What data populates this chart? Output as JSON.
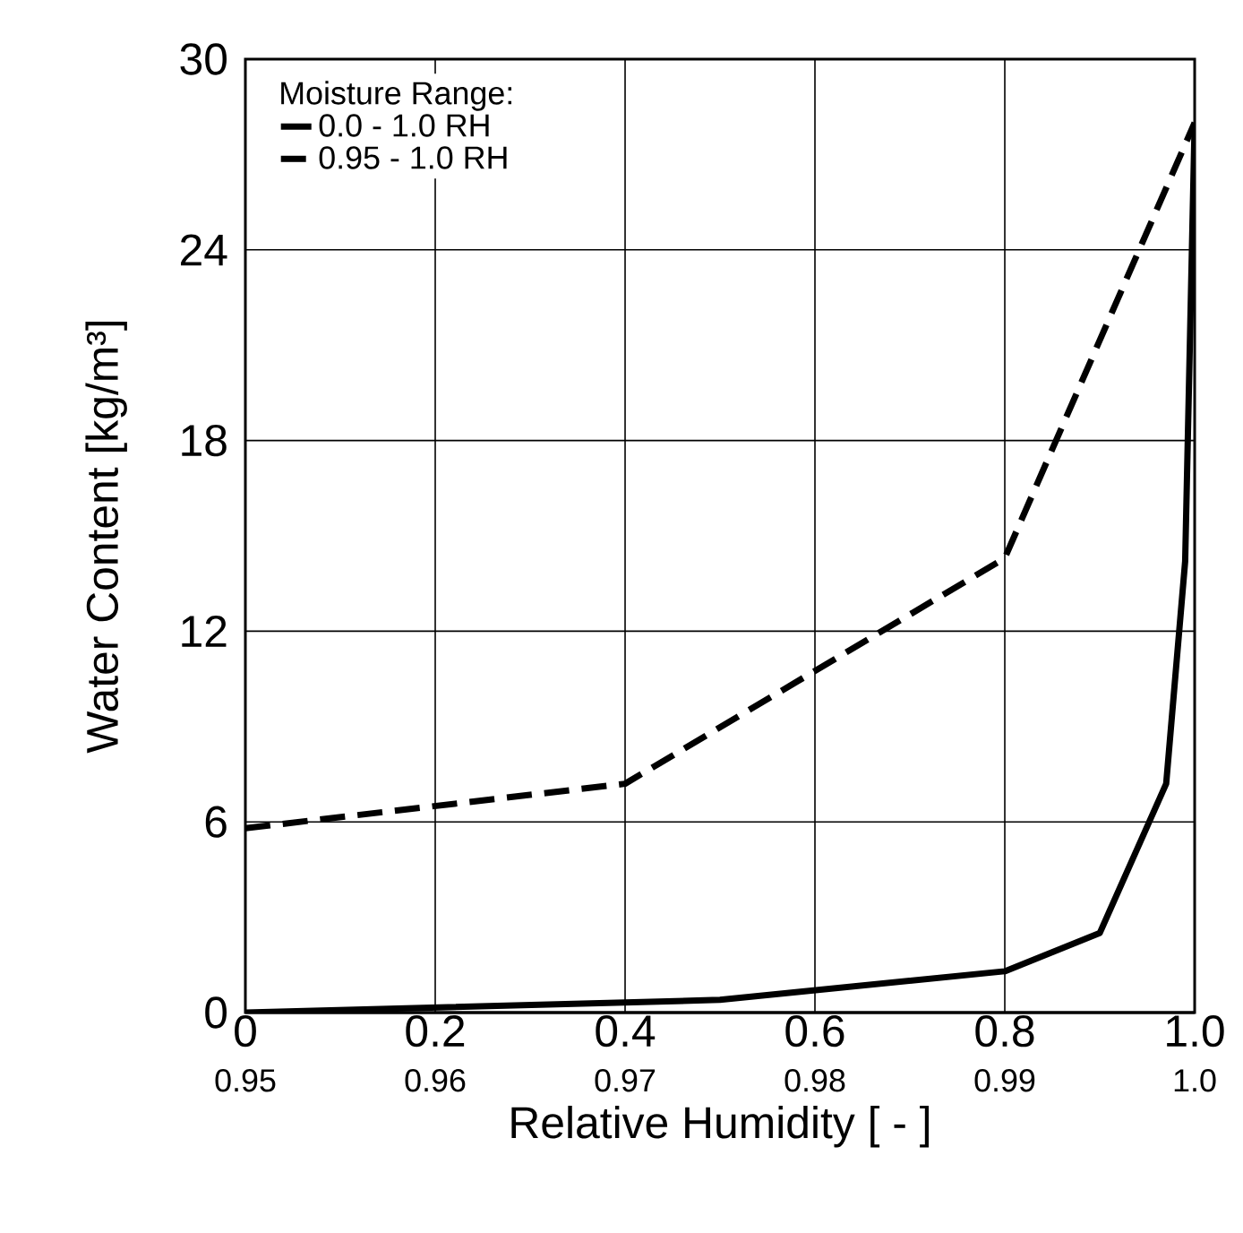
{
  "chart_data": {
    "type": "line",
    "xlabel": "Relative Humidity [ - ]",
    "ylabel": "Water Content [kg/m³]",
    "legend_title": "Moisture Range:",
    "legend": "top left",
    "grid": true,
    "marker": "none",
    "xlim": [
      0,
      1
    ],
    "xticks": [
      0,
      0.2,
      0.4,
      0.6,
      0.8,
      {
        "value": 1,
        "label": "1.0"
      }
    ],
    "x2lim": [
      0.95,
      1.0
    ],
    "x2ticks": [
      0.95,
      0.96,
      0.97,
      0.98,
      0.99,
      {
        "value": 1.0,
        "label": "1.0"
      }
    ],
    "ylim": [
      0,
      30
    ],
    "yticks": [
      0,
      6,
      12,
      18,
      24,
      30
    ],
    "series": [
      {
        "name": "0.0  -  1.0 RH",
        "color": "#000000",
        "line_style": "solid",
        "x": [
          0,
          0.5,
          0.8,
          0.9,
          0.97,
          0.99,
          1.0
        ],
        "values": [
          0,
          0.4,
          1.3,
          2.5,
          7.2,
          14.2,
          28
        ]
      },
      {
        "name": "0.95 - 1.0 RH",
        "color": "#000000",
        "line_style": "dashed",
        "axis": "x2",
        "x": [
          0.95,
          0.97,
          0.99,
          1.0
        ],
        "values": [
          5.8,
          7.2,
          14.3,
          28
        ]
      }
    ]
  }
}
